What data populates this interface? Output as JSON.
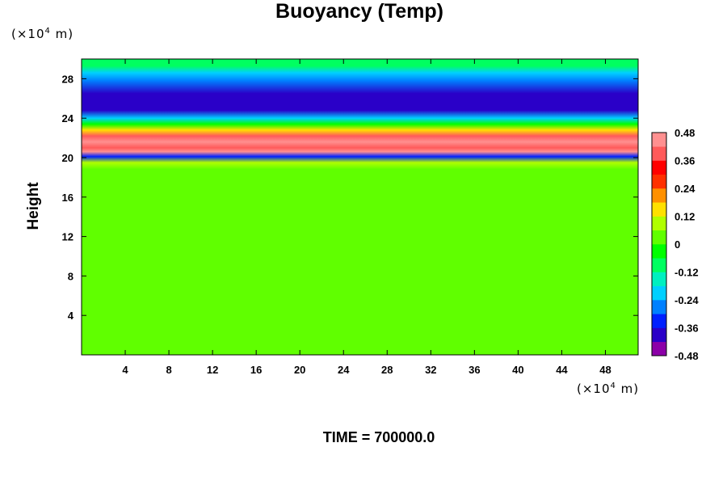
{
  "chart_data": {
    "type": "heatmap",
    "title": "Buoyancy (Temp)",
    "ylabel": "Height",
    "xlabel": "",
    "x_unit": {
      "prefix": "(×10",
      "exponent": "4",
      "suffix": " m)"
    },
    "y_unit": {
      "prefix": "(×10",
      "exponent": "4",
      "suffix": " m)"
    },
    "xlim": [
      0,
      51
    ],
    "ylim": [
      0,
      30
    ],
    "xticks": [
      4,
      8,
      12,
      16,
      20,
      24,
      28,
      32,
      36,
      40,
      44,
      48
    ],
    "yticks": [
      4,
      8,
      12,
      16,
      20,
      24,
      28
    ],
    "colorbar": {
      "range": [
        -0.48,
        0.48
      ],
      "ticks": [
        0.48,
        0.36,
        0.24,
        0.12,
        0,
        -0.12,
        -0.24,
        -0.36,
        -0.48
      ],
      "tick_labels": [
        "0.48",
        "0.36",
        "0.24",
        "0.12",
        "0",
        "-0.12",
        "-0.24",
        "-0.36",
        "-0.48"
      ],
      "colors": [
        "#8c00a8",
        "#2a00c8",
        "#0020ff",
        "#0080ff",
        "#00d0ff",
        "#00f0c0",
        "#00ff60",
        "#00ff00",
        "#60ff00",
        "#b0ff00",
        "#ffe000",
        "#ff9000",
        "#ff3000",
        "#ff0000",
        "#ff5a5a",
        "#ff9090"
      ]
    },
    "vertical_profile": [
      {
        "y": 0,
        "value": 0.0
      },
      {
        "y": 18.8,
        "value": 0.0
      },
      {
        "y": 19.5,
        "value": 0.08
      },
      {
        "y": 20.1,
        "value": -0.36
      },
      {
        "y": 20.6,
        "value": 0.48
      },
      {
        "y": 21.0,
        "value": 0.36
      },
      {
        "y": 21.6,
        "value": 0.48
      },
      {
        "y": 22.2,
        "value": 0.36
      },
      {
        "y": 22.8,
        "value": 0.18
      },
      {
        "y": 23.4,
        "value": -0.04
      },
      {
        "y": 24.0,
        "value": -0.24
      },
      {
        "y": 24.8,
        "value": -0.4
      },
      {
        "y": 26.5,
        "value": -0.38
      },
      {
        "y": 27.8,
        "value": -0.26
      },
      {
        "y": 28.6,
        "value": -0.2
      },
      {
        "y": 29.3,
        "value": -0.12
      },
      {
        "y": 30.0,
        "value": -0.09
      }
    ]
  },
  "footer": {
    "time_label": "TIME = 700000.0"
  }
}
